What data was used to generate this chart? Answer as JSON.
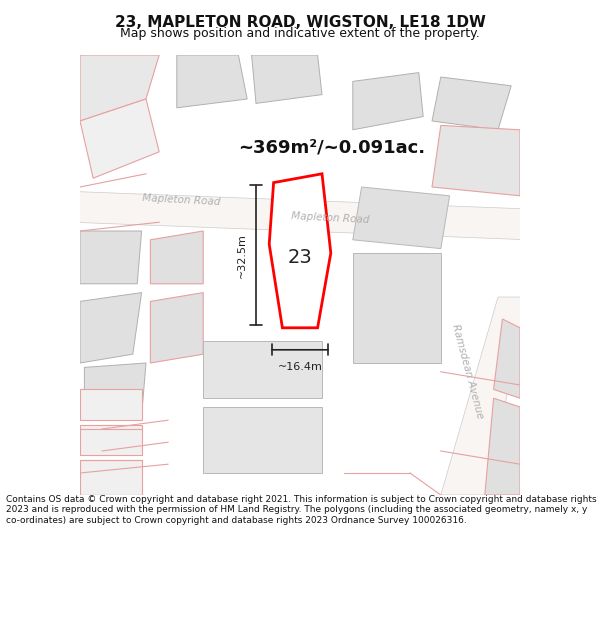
{
  "title": "23, MAPLETON ROAD, WIGSTON, LE18 1DW",
  "subtitle": "Map shows position and indicative extent of the property.",
  "area_text": "~369m²/~0.091ac.",
  "label_23": "23",
  "dim_height": "~32.5m",
  "dim_width": "~16.4m",
  "road_label1": "Mapleton Road",
  "road_label2": "Mapleton Road",
  "road_label3": "Ramsdean Avenue",
  "footer": "Contains OS data © Crown copyright and database right 2021. This information is subject to Crown copyright and database rights 2023 and is reproduced with the permission of HM Land Registry. The polygons (including the associated geometry, namely x, y co-ordinates) are subject to Crown copyright and database rights 2023 Ordnance Survey 100026316.",
  "bg_color": "#ffffff",
  "map_bg": "#f5f0ee",
  "building_fill": "#d9d9d9",
  "building_edge": "#b0b0b0",
  "road_fill": "#ffffff",
  "road_edge": "#cccccc",
  "highlight_fill": "#ffffff",
  "highlight_edge": "#ff0000",
  "highlight_lw": 2.0,
  "dim_color": "#222222",
  "road_text_color": "#aaaaaa",
  "area_text_color": "#111111",
  "title_color": "#111111",
  "footer_color": "#111111",
  "map_line_color": "#e8a0a0",
  "fig_width": 6.0,
  "fig_height": 6.25
}
